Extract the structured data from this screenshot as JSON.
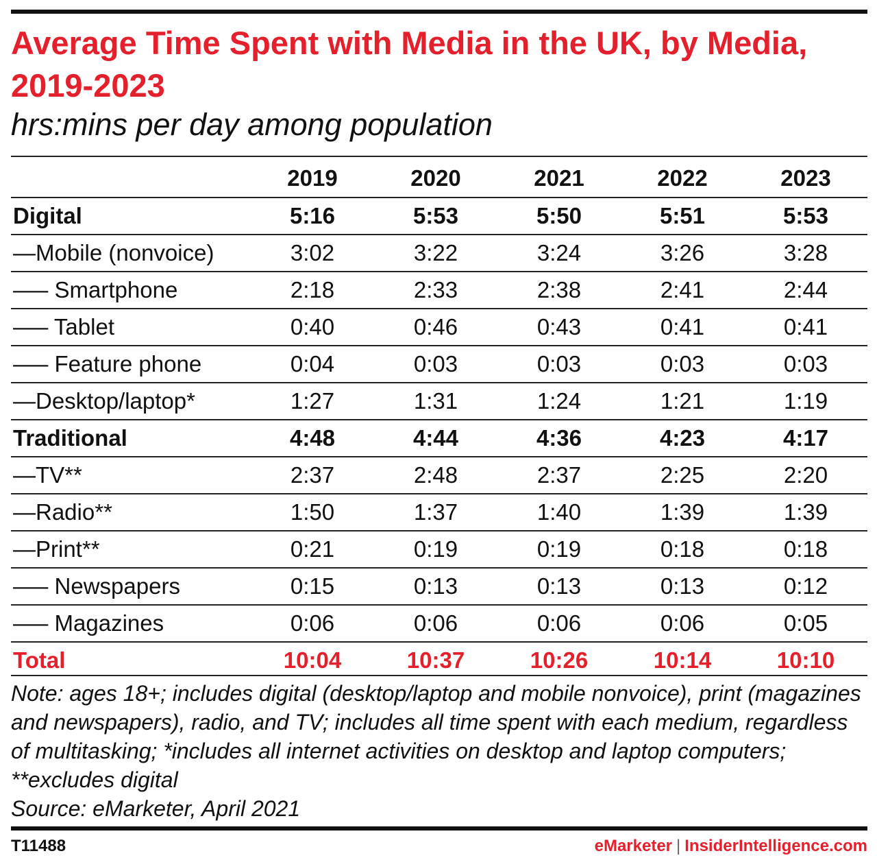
{
  "title": "Average Time Spent with Media in the UK, by Media, 2019-2023",
  "subtitle": "hrs:mins per day among population",
  "footer": {
    "id": "T11488",
    "brand_left": "eMarketer",
    "separator": "|",
    "brand_right": "InsiderIntelligence.com"
  },
  "notes": {
    "note": "Note: ages 18+; includes digital (desktop/laptop and mobile nonvoice), print (magazines and newspapers), radio, and TV; includes all time spent with each medium, regardless of multitasking; *includes all internet activities on desktop and laptop computers; **excludes digital",
    "source": "Source: eMarketer, April 2021"
  },
  "colors": {
    "accent": "#e3202b",
    "text": "#111111",
    "rule": "#222222"
  },
  "chart_data": {
    "type": "table",
    "title": "Average Time Spent with Media in the UK, by Media, 2019-2023",
    "subtitle": "hrs:mins per day among population",
    "columns": [
      "2019",
      "2020",
      "2021",
      "2022",
      "2023"
    ],
    "rows": [
      {
        "label": "Digital",
        "style": "bold",
        "values": [
          "5:16",
          "5:53",
          "5:50",
          "5:51",
          "5:53"
        ]
      },
      {
        "label": "—Mobile (nonvoice)",
        "style": "normal",
        "values": [
          "3:02",
          "3:22",
          "3:24",
          "3:26",
          "3:28"
        ]
      },
      {
        "label": "—– Smartphone",
        "style": "normal",
        "values": [
          "2:18",
          "2:33",
          "2:38",
          "2:41",
          "2:44"
        ]
      },
      {
        "label": "—– Tablet",
        "style": "normal",
        "values": [
          "0:40",
          "0:46",
          "0:43",
          "0:41",
          "0:41"
        ]
      },
      {
        "label": "—– Feature phone",
        "style": "normal",
        "values": [
          "0:04",
          "0:03",
          "0:03",
          "0:03",
          "0:03"
        ]
      },
      {
        "label": "—Desktop/laptop*",
        "style": "normal",
        "values": [
          "1:27",
          "1:31",
          "1:24",
          "1:21",
          "1:19"
        ]
      },
      {
        "label": "Traditional",
        "style": "bold",
        "values": [
          "4:48",
          "4:44",
          "4:36",
          "4:23",
          "4:17"
        ]
      },
      {
        "label": "—TV**",
        "style": "normal",
        "values": [
          "2:37",
          "2:48",
          "2:37",
          "2:25",
          "2:20"
        ]
      },
      {
        "label": "—Radio**",
        "style": "normal",
        "values": [
          "1:50",
          "1:37",
          "1:40",
          "1:39",
          "1:39"
        ]
      },
      {
        "label": "—Print**",
        "style": "normal",
        "values": [
          "0:21",
          "0:19",
          "0:19",
          "0:18",
          "0:18"
        ]
      },
      {
        "label": "—– Newspapers",
        "style": "normal",
        "values": [
          "0:15",
          "0:13",
          "0:13",
          "0:13",
          "0:12"
        ]
      },
      {
        "label": "—– Magazines",
        "style": "normal",
        "values": [
          "0:06",
          "0:06",
          "0:06",
          "0:06",
          "0:05"
        ]
      },
      {
        "label": "Total",
        "style": "total",
        "values": [
          "10:04",
          "10:37",
          "10:26",
          "10:14",
          "10:10"
        ]
      }
    ]
  }
}
